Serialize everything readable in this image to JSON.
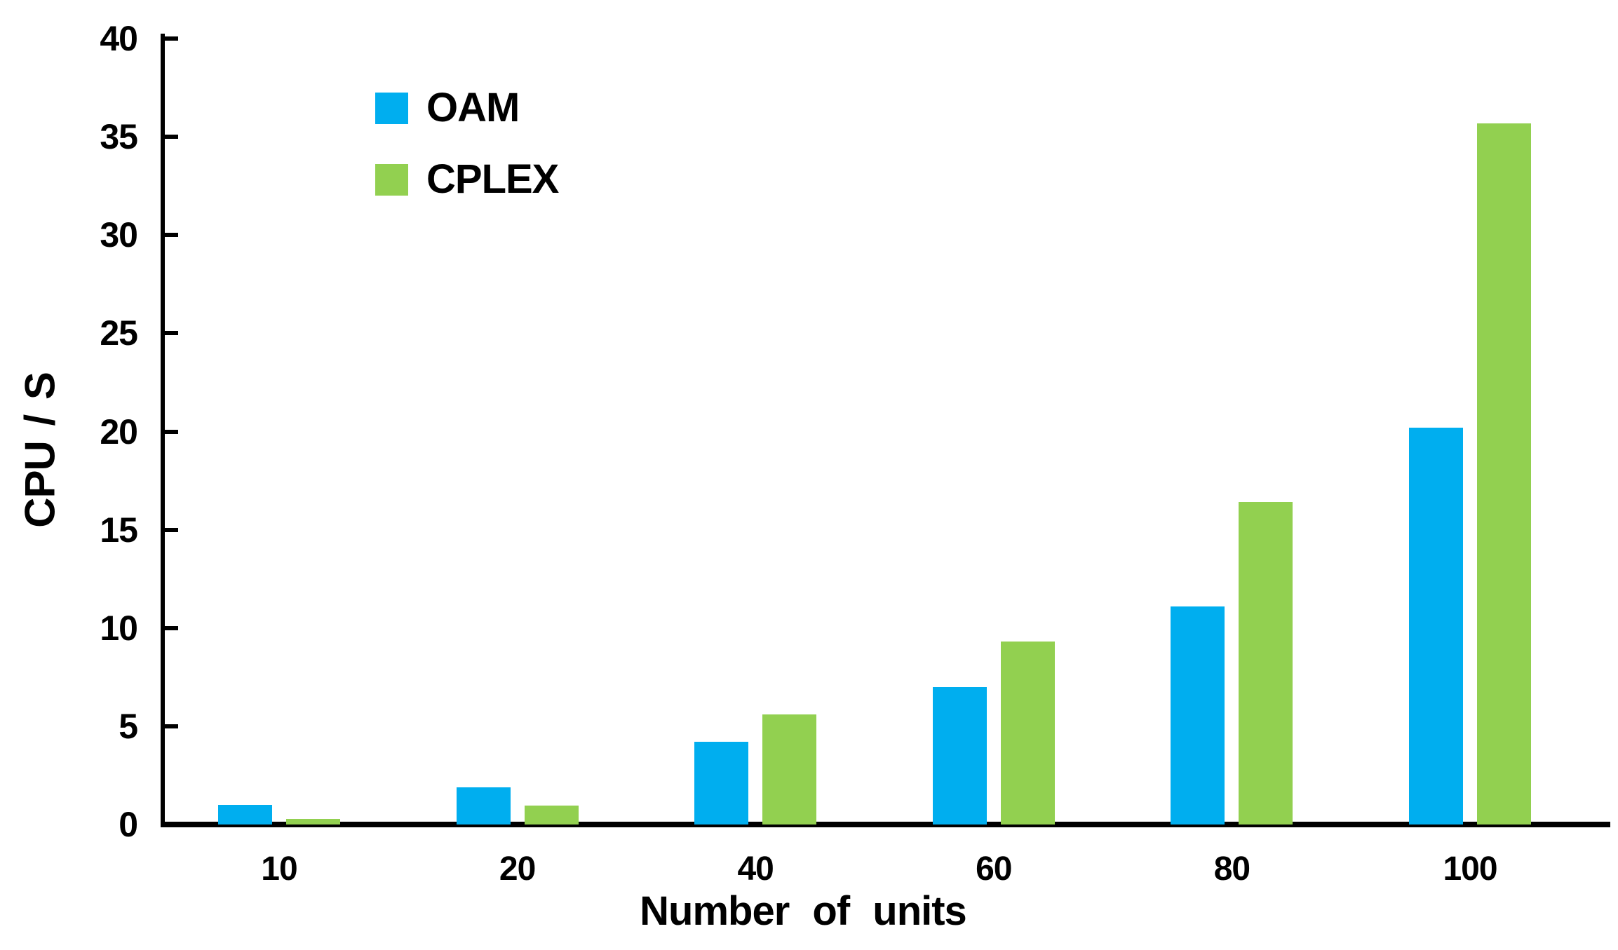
{
  "chart_data": {
    "type": "bar",
    "title": "",
    "xlabel": "Number of units",
    "ylabel": "CPU / S",
    "categories": [
      "10",
      "20",
      "40",
      "60",
      "80",
      "100"
    ],
    "series": [
      {
        "name": "OAM",
        "color": "#00AEEF",
        "values": [
          1.0,
          1.9,
          4.2,
          7.0,
          11.1,
          20.2
        ]
      },
      {
        "name": "CPLEX",
        "color": "#92D050",
        "values": [
          0.3,
          0.95,
          5.6,
          9.3,
          16.4,
          35.7
        ]
      }
    ],
    "ylim": [
      0,
      40
    ],
    "ytick_step": 5,
    "ytick_labels": [
      "0",
      "5",
      "10",
      "15",
      "20",
      "25",
      "30",
      "35",
      "40"
    ],
    "grid": false,
    "legend_position": "upper-left-inside",
    "axis_color": "#000000",
    "background_color": "#ffffff"
  }
}
